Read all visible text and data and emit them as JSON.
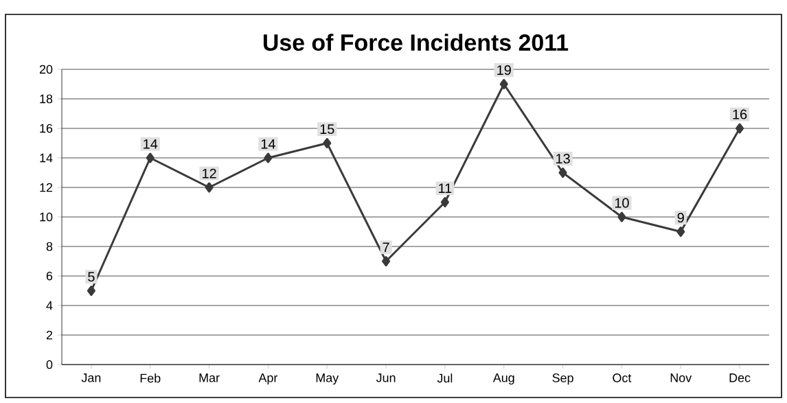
{
  "chart_data": {
    "type": "line",
    "title": "Use of Force Incidents 2011",
    "categories": [
      "Jan",
      "Feb",
      "Mar",
      "Apr",
      "May",
      "Jun",
      "Jul",
      "Aug",
      "Sep",
      "Oct",
      "Nov",
      "Dec"
    ],
    "series": [
      {
        "color": "#3a3a3a",
        "values": [
          5,
          14,
          12,
          14,
          15,
          7,
          11,
          19,
          13,
          10,
          9,
          16
        ]
      }
    ],
    "ylim": [
      0,
      20
    ],
    "yticks": [
      0,
      2,
      4,
      6,
      8,
      10,
      12,
      14,
      16,
      18,
      20
    ],
    "grid": "y",
    "marker": "diamond",
    "line_style": "solid",
    "data_labels": true
  }
}
